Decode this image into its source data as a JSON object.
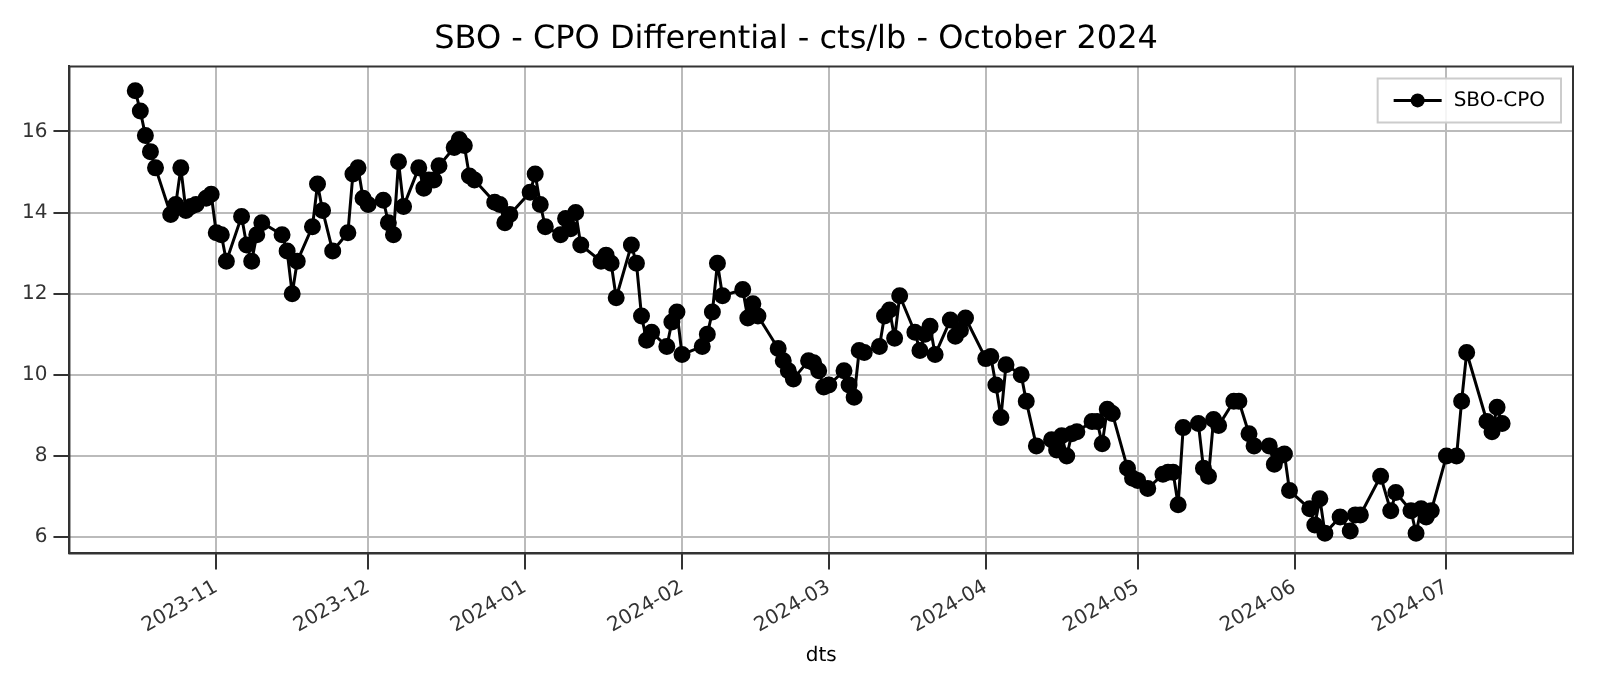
{
  "chart_data": {
    "type": "line",
    "title": "SBO - CPO Differential - cts/lb - October 2024",
    "xlabel": "dts",
    "x": [
      "2023-10-16",
      "2023-10-17",
      "2023-10-18",
      "2023-10-19",
      "2023-10-20",
      "2023-10-23",
      "2023-10-24",
      "2023-10-25",
      "2023-10-26",
      "2023-10-27",
      "2023-10-28",
      "2023-10-30",
      "2023-10-31",
      "2023-11-01",
      "2023-11-02",
      "2023-11-03",
      "2023-11-06",
      "2023-11-07",
      "2023-11-08",
      "2023-11-09",
      "2023-11-10",
      "2023-11-14",
      "2023-11-15",
      "2023-11-16",
      "2023-11-17",
      "2023-11-20",
      "2023-11-21",
      "2023-11-22",
      "2023-11-24",
      "2023-11-27",
      "2023-11-28",
      "2023-11-29",
      "2023-11-30",
      "2023-12-01",
      "2023-12-04",
      "2023-12-05",
      "2023-12-06",
      "2023-12-07",
      "2023-12-08",
      "2023-12-11",
      "2023-12-12",
      "2023-12-13",
      "2023-12-14",
      "2023-12-15",
      "2023-12-18",
      "2023-12-19",
      "2023-12-20",
      "2023-12-21",
      "2023-12-22",
      "2023-12-26",
      "2023-12-27",
      "2023-12-28",
      "2023-12-29",
      "2024-01-02",
      "2024-01-03",
      "2024-01-04",
      "2024-01-05",
      "2024-01-08",
      "2024-01-09",
      "2024-01-10",
      "2024-01-11",
      "2024-01-12",
      "2024-01-16",
      "2024-01-17",
      "2024-01-18",
      "2024-01-19",
      "2024-01-22",
      "2024-01-23",
      "2024-01-24",
      "2024-01-25",
      "2024-01-26",
      "2024-01-29",
      "2024-01-30",
      "2024-01-31",
      "2024-02-01",
      "2024-02-05",
      "2024-02-06",
      "2024-02-07",
      "2024-02-08",
      "2024-02-09",
      "2024-02-13",
      "2024-02-14",
      "2024-02-15",
      "2024-02-16",
      "2024-02-20",
      "2024-02-21",
      "2024-02-22",
      "2024-02-23",
      "2024-02-26",
      "2024-02-27",
      "2024-02-28",
      "2024-02-29",
      "2024-03-01",
      "2024-03-04",
      "2024-03-05",
      "2024-03-06",
      "2024-03-07",
      "2024-03-08",
      "2024-03-11",
      "2024-03-12",
      "2024-03-13",
      "2024-03-14",
      "2024-03-15",
      "2024-03-18",
      "2024-03-19",
      "2024-03-20",
      "2024-03-21",
      "2024-03-22",
      "2024-03-25",
      "2024-03-26",
      "2024-03-27",
      "2024-03-28",
      "2024-04-01",
      "2024-04-02",
      "2024-04-03",
      "2024-04-04",
      "2024-04-05",
      "2024-04-08",
      "2024-04-09",
      "2024-04-11",
      "2024-04-14",
      "2024-04-15",
      "2024-04-16",
      "2024-04-17",
      "2024-04-18",
      "2024-04-19",
      "2024-04-22",
      "2024-04-23",
      "2024-04-24",
      "2024-04-25",
      "2024-04-26",
      "2024-04-29",
      "2024-04-30",
      "2024-05-01",
      "2024-05-03",
      "2024-05-06",
      "2024-05-07",
      "2024-05-08",
      "2024-05-09",
      "2024-05-10",
      "2024-05-13",
      "2024-05-14",
      "2024-05-15",
      "2024-05-16",
      "2024-05-17",
      "2024-05-20",
      "2024-05-21",
      "2024-05-23",
      "2024-05-24",
      "2024-05-27",
      "2024-05-28",
      "2024-05-29",
      "2024-05-30",
      "2024-05-31",
      "2024-06-04",
      "2024-06-05",
      "2024-06-06",
      "2024-06-07",
      "2024-06-10",
      "2024-06-12",
      "2024-06-13",
      "2024-06-14",
      "2024-06-18",
      "2024-06-20",
      "2024-06-21",
      "2024-06-24",
      "2024-06-25",
      "2024-06-26",
      "2024-06-27",
      "2024-06-28",
      "2024-07-01",
      "2024-07-03",
      "2024-07-04",
      "2024-07-05",
      "2024-07-09",
      "2024-07-10",
      "2024-07-11",
      "2024-07-12"
    ],
    "series": [
      {
        "name": "SBO-CPO",
        "color": "#000000",
        "values": [
          17.0,
          16.5,
          15.9,
          15.5,
          15.1,
          13.95,
          14.2,
          15.1,
          14.05,
          14.15,
          14.2,
          14.35,
          14.45,
          13.5,
          13.45,
          12.8,
          13.9,
          13.2,
          12.8,
          13.45,
          13.75,
          13.45,
          13.05,
          12.0,
          12.8,
          13.65,
          14.7,
          14.05,
          13.05,
          13.5,
          14.95,
          15.1,
          14.35,
          14.2,
          14.3,
          13.75,
          13.45,
          15.25,
          14.15,
          15.1,
          14.6,
          14.8,
          14.8,
          15.15,
          15.6,
          15.8,
          15.65,
          14.9,
          14.8,
          14.25,
          14.2,
          13.75,
          13.95,
          14.5,
          14.95,
          14.2,
          13.65,
          13.45,
          13.85,
          13.6,
          14.0,
          13.2,
          12.8,
          12.95,
          12.75,
          11.9,
          13.2,
          12.75,
          11.45,
          10.85,
          11.05,
          10.7,
          11.3,
          11.55,
          10.5,
          10.7,
          11.0,
          11.55,
          12.75,
          11.95,
          12.1,
          11.4,
          11.75,
          11.45,
          10.65,
          10.35,
          10.1,
          9.9,
          10.35,
          10.3,
          10.1,
          9.7,
          9.75,
          10.1,
          9.75,
          9.45,
          10.6,
          10.55,
          10.7,
          11.45,
          11.6,
          10.9,
          11.95,
          11.05,
          10.6,
          11.0,
          11.2,
          10.5,
          11.35,
          10.95,
          11.1,
          11.4,
          10.4,
          10.45,
          9.75,
          8.95,
          10.25,
          10.0,
          9.35,
          8.25,
          8.4,
          8.15,
          8.5,
          8.0,
          8.55,
          8.6,
          8.85,
          8.85,
          8.3,
          9.15,
          9.05,
          7.7,
          7.45,
          7.4,
          7.2,
          7.55,
          7.6,
          7.6,
          6.8,
          8.7,
          8.8,
          7.7,
          7.5,
          8.9,
          8.75,
          9.35,
          9.35,
          8.55,
          8.25,
          8.25,
          7.8,
          8.0,
          8.05,
          7.15,
          6.7,
          6.3,
          6.95,
          6.1,
          6.5,
          6.15,
          6.55,
          6.55,
          7.5,
          6.65,
          7.1,
          6.65,
          6.1,
          6.7,
          6.5,
          6.65,
          8.0,
          8.0,
          9.35,
          10.55,
          8.85,
          8.6,
          9.2,
          8.8
        ]
      }
    ],
    "xlim": [
      "2023-10-03",
      "2024-07-26"
    ],
    "xticks": [
      {
        "value": "2023-11-01",
        "label": "2023-11"
      },
      {
        "value": "2023-12-01",
        "label": "2023-12"
      },
      {
        "value": "2024-01-01",
        "label": "2024-01"
      },
      {
        "value": "2024-02-01",
        "label": "2024-02"
      },
      {
        "value": "2024-03-01",
        "label": "2024-03"
      },
      {
        "value": "2024-04-01",
        "label": "2024-04"
      },
      {
        "value": "2024-05-01",
        "label": "2024-05"
      },
      {
        "value": "2024-06-01",
        "label": "2024-06"
      },
      {
        "value": "2024-07-01",
        "label": "2024-07"
      }
    ],
    "ylim": [
      5.6,
      17.6
    ],
    "yticks": [
      6,
      8,
      10,
      12,
      14,
      16
    ],
    "grid": true,
    "legend": "top right",
    "marker": "circle",
    "line_style": "solid"
  }
}
